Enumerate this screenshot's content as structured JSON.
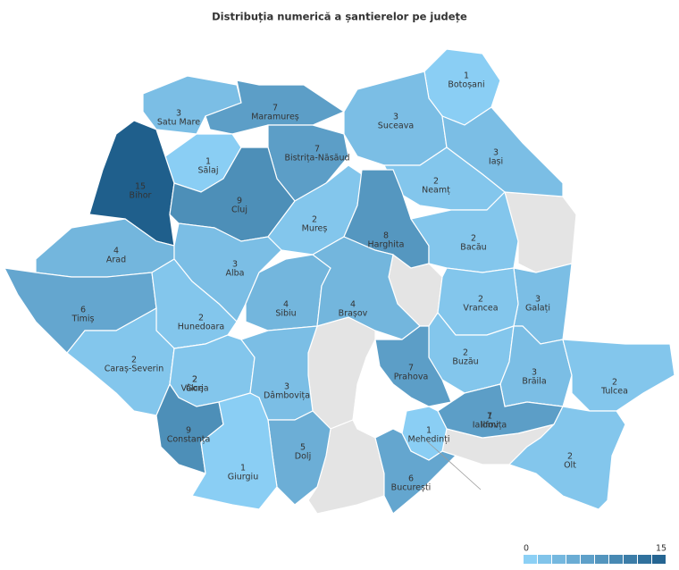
{
  "title": "Distribuția numerică a șantierelor pe județe",
  "counties": [
    {
      "name": "Botoșani",
      "value": 1
    },
    {
      "name": "Satu Mare",
      "value": 3
    },
    {
      "name": "Maramureș",
      "value": 7
    },
    {
      "name": "Suceava",
      "value": 3
    },
    {
      "name": "Sălaj",
      "value": 1
    },
    {
      "name": "Bistrița-Năsăud",
      "value": 7
    },
    {
      "name": "Iași",
      "value": 3
    },
    {
      "name": "Bihor",
      "value": 15
    },
    {
      "name": "Cluj",
      "value": 9
    },
    {
      "name": "Neamț",
      "value": 2
    },
    {
      "name": "Mureș",
      "value": 2
    },
    {
      "name": "Harghita",
      "value": 8
    },
    {
      "name": "Bacău",
      "value": 2
    },
    {
      "name": "Arad",
      "value": 4
    },
    {
      "name": "Alba",
      "value": 3
    },
    {
      "name": "Timiș",
      "value": 6
    },
    {
      "name": "Sibiu",
      "value": 4
    },
    {
      "name": "Brașov",
      "value": 4
    },
    {
      "name": "Galați",
      "value": 3
    },
    {
      "name": "Vrancea",
      "value": 2
    },
    {
      "name": "Hunedoara",
      "value": 2
    },
    {
      "name": "Caraș-Severin",
      "value": 2
    },
    {
      "name": "Buzău",
      "value": 2
    },
    {
      "name": "Prahova",
      "value": 7
    },
    {
      "name": "Brăila",
      "value": 3
    },
    {
      "name": "Gorj",
      "value": 2
    },
    {
      "name": "Vâlcea",
      "value": 2
    },
    {
      "name": "Dâmbovița",
      "value": 3
    },
    {
      "name": "Tulcea",
      "value": 2
    },
    {
      "name": "Ialomița",
      "value": 1
    },
    {
      "name": "Ilfov",
      "value": 7
    },
    {
      "name": "Mehedinți",
      "value": 1
    },
    {
      "name": "Constanța",
      "value": 9
    },
    {
      "name": "Olt",
      "value": 2
    },
    {
      "name": "Dolj",
      "value": 5
    },
    {
      "name": "Giurgiu",
      "value": 1
    },
    {
      "name": "București",
      "value": 6
    }
  ],
  "legend": {
    "min": 0,
    "max": 15,
    "colors": [
      "#92d6fb",
      "#1f5f8c"
    ]
  }
}
